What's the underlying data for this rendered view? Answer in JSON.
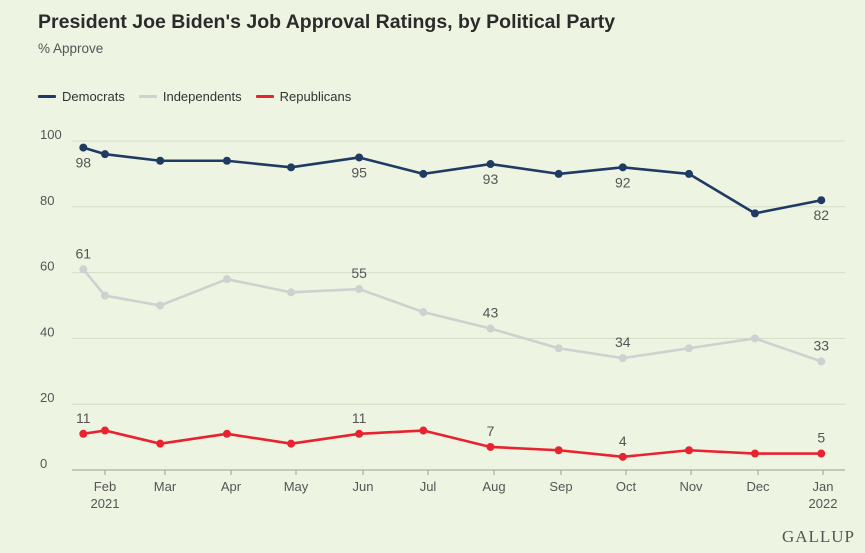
{
  "colors": {
    "background": "#eef4e2",
    "grid": "#d4dcc6",
    "democrats": "#1f3b63",
    "independents": "#cfd1d0",
    "republicans": "#e8232f"
  },
  "logo_text": "GALLUP",
  "chart_data": {
    "type": "line",
    "title": "President Joe Biden's Job Approval Ratings, by Political Party",
    "subtitle": "% Approve",
    "xlabel": "",
    "ylabel": "",
    "ylim": [
      0,
      100
    ],
    "yticks": [
      0,
      20,
      40,
      60,
      80,
      100
    ],
    "grid": true,
    "legend_position": "top-left",
    "x_tick_labels": [
      {
        "label": "Feb",
        "sub": "2021"
      },
      {
        "label": "Mar",
        "sub": ""
      },
      {
        "label": "Apr",
        "sub": ""
      },
      {
        "label": "May",
        "sub": ""
      },
      {
        "label": "Jun",
        "sub": ""
      },
      {
        "label": "Jul",
        "sub": ""
      },
      {
        "label": "Aug",
        "sub": ""
      },
      {
        "label": "Sep",
        "sub": ""
      },
      {
        "label": "Oct",
        "sub": ""
      },
      {
        "label": "Nov",
        "sub": ""
      },
      {
        "label": "Dec",
        "sub": ""
      },
      {
        "label": "Jan",
        "sub": "2022"
      }
    ],
    "x": [
      "2021-01-25",
      "2021-02-05",
      "2021-03-05",
      "2021-04-05",
      "2021-05-05",
      "2021-06-05",
      "2021-07-05",
      "2021-08-05",
      "2021-09-05",
      "2021-10-05",
      "2021-11-05",
      "2021-12-05",
      "2022-01-05"
    ],
    "series": [
      {
        "name": "Democrats",
        "color": "#1f3b63",
        "values": [
          98,
          96,
          94,
          94,
          92,
          95,
          90,
          93,
          90,
          92,
          90,
          78,
          82
        ],
        "labeled": [
          0,
          5,
          7,
          9,
          12
        ],
        "label_pos": "below"
      },
      {
        "name": "Independents",
        "color": "#cfd1d0",
        "values": [
          61,
          53,
          50,
          58,
          54,
          55,
          48,
          43,
          37,
          34,
          37,
          40,
          33
        ],
        "labeled": [
          0,
          5,
          7,
          9,
          12
        ],
        "label_pos": "above"
      },
      {
        "name": "Republicans",
        "color": "#e8232f",
        "values": [
          11,
          12,
          8,
          11,
          8,
          11,
          12,
          7,
          6,
          4,
          6,
          5,
          5
        ],
        "labeled": [
          0,
          5,
          7,
          9,
          12
        ],
        "label_pos": "above"
      }
    ]
  }
}
